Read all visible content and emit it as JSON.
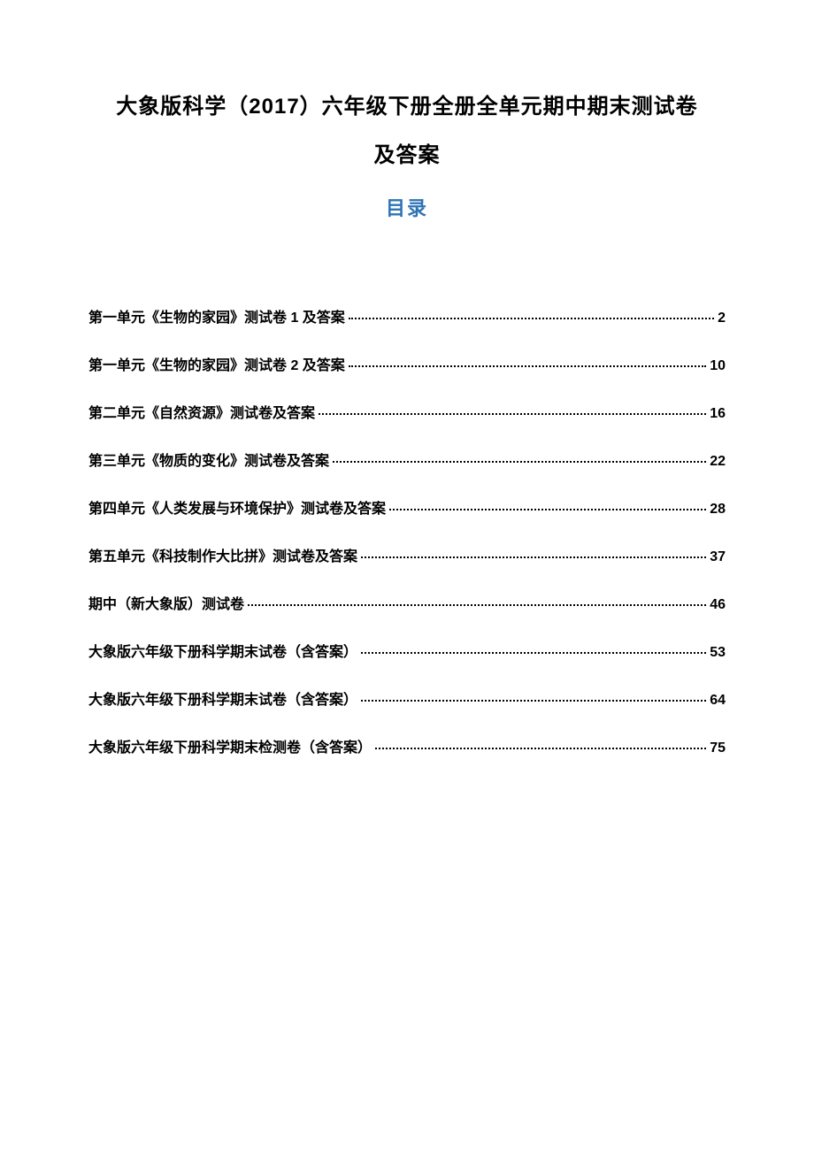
{
  "title": {
    "line1": "大象版科学（2017）六年级下册全册全单元期中期末测试卷",
    "line2": "及答案"
  },
  "toc_heading": "目录",
  "toc_entries": [
    {
      "label": "第一单元《生物的家园》测试卷 1 及答案",
      "page": "2"
    },
    {
      "label": "第一单元《生物的家园》测试卷 2 及答案",
      "page": "10"
    },
    {
      "label": "第二单元《自然资源》测试卷及答案",
      "page": "16"
    },
    {
      "label": "第三单元《物质的变化》测试卷及答案",
      "page": "22"
    },
    {
      "label": "第四单元《人类发展与环境保护》测试卷及答案",
      "page": "28"
    },
    {
      "label": "第五单元《科技制作大比拼》测试卷及答案",
      "page": "37"
    },
    {
      "label": "期中（新大象版）测试卷",
      "page": "46"
    },
    {
      "label": "大象版六年级下册科学期末试卷（含答案）",
      "page": "53"
    },
    {
      "label": "大象版六年级下册科学期末试卷（含答案）",
      "page": "64"
    },
    {
      "label": "大象版六年级下册科学期末检测卷（含答案）",
      "page": "75"
    }
  ],
  "colors": {
    "background": "#ffffff",
    "title_text": "#000000",
    "toc_heading": "#2e74b5",
    "toc_text": "#000000",
    "dots": "#000000"
  },
  "typography": {
    "title_fontsize": 24,
    "toc_heading_fontsize": 22,
    "toc_entry_fontsize": 16,
    "font_family": "Microsoft YaHei"
  }
}
